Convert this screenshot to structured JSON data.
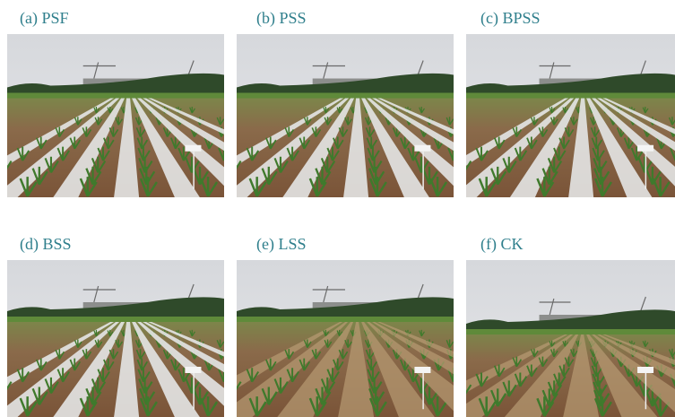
{
  "panels": [
    {
      "label": "(a) PSF"
    },
    {
      "label": "(b) PSS"
    },
    {
      "label": "(c) BPSS"
    },
    {
      "label": "(d) BSS"
    },
    {
      "label": "(e) LSS"
    },
    {
      "label": "(f) CK"
    }
  ]
}
